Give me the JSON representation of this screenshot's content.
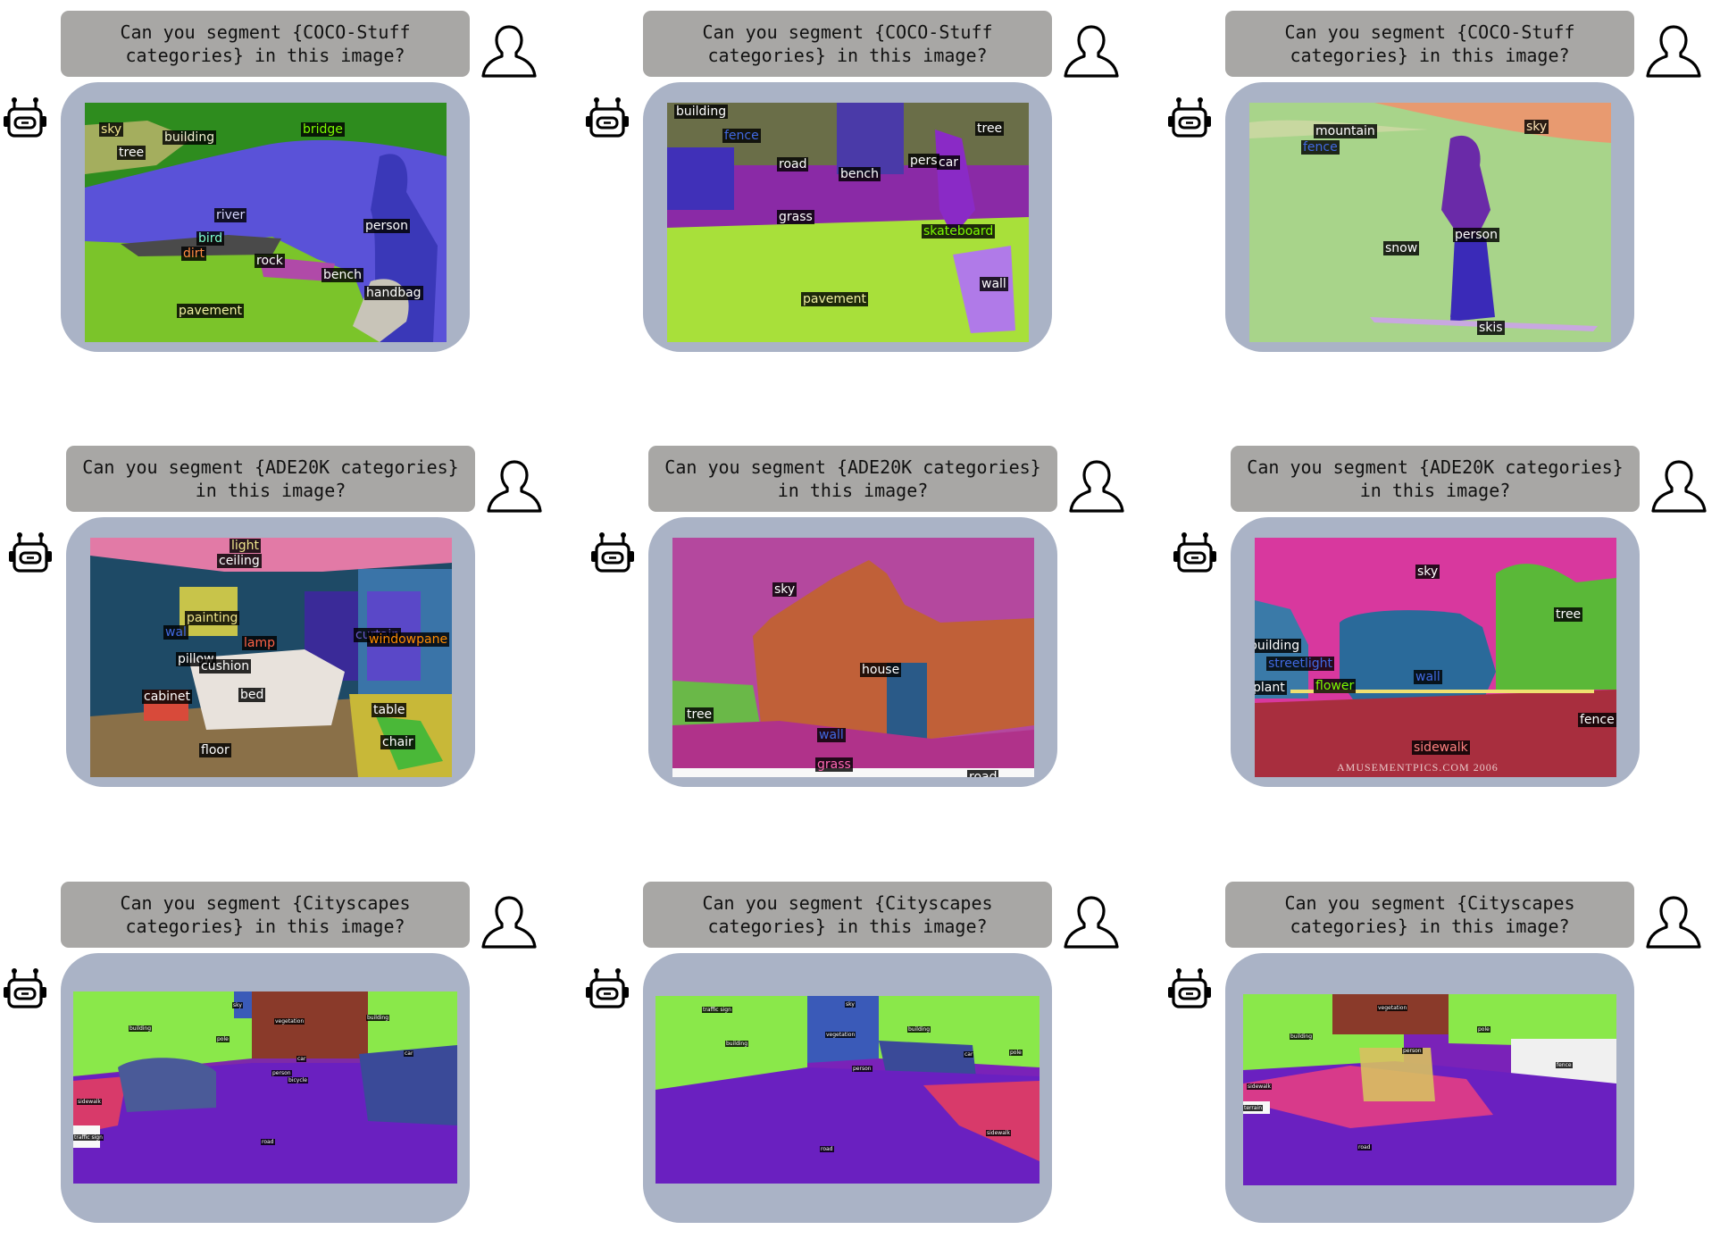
{
  "cells": [
    {
      "prompt": "Can you segment {COCO-Stuff\ncategories} in this image?",
      "labels": [
        {
          "t": "sky",
          "c": "#f0e68c"
        },
        {
          "t": "building",
          "c": "#f0f0d0"
        },
        {
          "t": "bridge",
          "c": "#7cfc00"
        },
        {
          "t": "tree",
          "c": "#ffffff"
        },
        {
          "t": "river",
          "c": "#d8d8ff"
        },
        {
          "t": "person",
          "c": "#ffffff"
        },
        {
          "t": "bird",
          "c": "#7fffd4"
        },
        {
          "t": "dirt",
          "c": "#ff8c42"
        },
        {
          "t": "rock",
          "c": "#ffffff"
        },
        {
          "t": "bench",
          "c": "#ffffff"
        },
        {
          "t": "handbag",
          "c": "#ffffff"
        },
        {
          "t": "pavement",
          "c": "#f0f0a0"
        }
      ]
    },
    {
      "prompt": "Can you segment {COCO-Stuff\ncategories} in this image?",
      "labels": [
        {
          "t": "building",
          "c": "#ffffff"
        },
        {
          "t": "fence",
          "c": "#4169e1"
        },
        {
          "t": "road",
          "c": "#ffffff"
        },
        {
          "t": "bench",
          "c": "#ffffff"
        },
        {
          "t": "pers",
          "c": "#ffffff"
        },
        {
          "t": "car",
          "c": "#ffffff"
        },
        {
          "t": "tree",
          "c": "#ffffff"
        },
        {
          "t": "grass",
          "c": "#ffffff"
        },
        {
          "t": "skateboard",
          "c": "#7cfc00"
        },
        {
          "t": "wall",
          "c": "#ffffff"
        },
        {
          "t": "pavement",
          "c": "#f0f0a0"
        }
      ]
    },
    {
      "prompt": "Can you segment {COCO-Stuff\ncategories} in this image?",
      "labels": [
        {
          "t": "mountain",
          "c": "#ffffff"
        },
        {
          "t": "fence",
          "c": "#4169e1"
        },
        {
          "t": "sky",
          "c": "#ffe4b5"
        },
        {
          "t": "person",
          "c": "#ffffff"
        },
        {
          "t": "snow",
          "c": "#ffffff"
        },
        {
          "t": "skis",
          "c": "#ffffff"
        }
      ]
    },
    {
      "prompt": "Can you segment {ADE20K categories}\nin this image?",
      "labels": [
        {
          "t": "light",
          "c": "#f0e68c"
        },
        {
          "t": "ceiling",
          "c": "#ffffff"
        },
        {
          "t": "painting",
          "c": "#f0e68c"
        },
        {
          "t": "wal",
          "c": "#4169e1"
        },
        {
          "t": "lamp",
          "c": "#ff6347"
        },
        {
          "t": "curtain",
          "c": "#6a5acd"
        },
        {
          "t": "windowpane",
          "c": "#ff8c00"
        },
        {
          "t": "pillow",
          "c": "#ffffff"
        },
        {
          "t": "cushion",
          "c": "#ffffff"
        },
        {
          "t": "cabinet",
          "c": "#ffffff"
        },
        {
          "t": "bed",
          "c": "#ffffff"
        },
        {
          "t": "table",
          "c": "#ffffff"
        },
        {
          "t": "chair",
          "c": "#ffffff"
        },
        {
          "t": "floor",
          "c": "#ffffff"
        }
      ]
    },
    {
      "prompt": "Can you segment {ADE20K categories}\nin this image?",
      "labels": [
        {
          "t": "sky",
          "c": "#ffffff"
        },
        {
          "t": "house",
          "c": "#ffffff"
        },
        {
          "t": "tree",
          "c": "#ffffff"
        },
        {
          "t": "wall",
          "c": "#4169e1"
        },
        {
          "t": "grass",
          "c": "#ff69b4"
        },
        {
          "t": "road",
          "c": "#ffffff"
        }
      ]
    },
    {
      "prompt": "Can you segment {ADE20K categories}\nin this image?",
      "labels": [
        {
          "t": "sky",
          "c": "#ffffff"
        },
        {
          "t": "tree",
          "c": "#ffffff"
        },
        {
          "t": "building",
          "c": "#ffffff"
        },
        {
          "t": "streetlight",
          "c": "#4169e1"
        },
        {
          "t": "wall",
          "c": "#4169e1"
        },
        {
          "t": "plant",
          "c": "#ffffff"
        },
        {
          "t": "flower",
          "c": "#7cfc00"
        },
        {
          "t": "fence",
          "c": "#ffffff"
        },
        {
          "t": "sidewalk",
          "c": "#ff8080"
        }
      ],
      "watermark": "AMUSEMENTPICS.COM 2006"
    },
    {
      "prompt": "Can you segment {Cityscapes\ncategories} in this image?",
      "labels": [
        {
          "t": "building",
          "c": "#ffffff"
        },
        {
          "t": "sky",
          "c": "#ffffff"
        },
        {
          "t": "vegetation",
          "c": "#ffffff"
        },
        {
          "t": "building",
          "c": "#ffffff"
        },
        {
          "t": "pole",
          "c": "#ffffff"
        },
        {
          "t": "car",
          "c": "#ffffff"
        },
        {
          "t": "person",
          "c": "#ffffff"
        },
        {
          "t": "bicycle",
          "c": "#ffffff"
        },
        {
          "t": "sidewalk",
          "c": "#ffffff"
        },
        {
          "t": "traffic sign",
          "c": "#ffffff"
        },
        {
          "t": "road",
          "c": "#ffffff"
        },
        {
          "t": "car",
          "c": "#ffffff"
        }
      ]
    },
    {
      "prompt": "Can you segment {Cityscapes\ncategories} in this image?",
      "labels": [
        {
          "t": "traffic sign",
          "c": "#ffffff"
        },
        {
          "t": "sky",
          "c": "#ffffff"
        },
        {
          "t": "building",
          "c": "#ffffff"
        },
        {
          "t": "vegetation",
          "c": "#ffffff"
        },
        {
          "t": "building",
          "c": "#ffffff"
        },
        {
          "t": "pole",
          "c": "#ffffff"
        },
        {
          "t": "car",
          "c": "#ffffff"
        },
        {
          "t": "person",
          "c": "#ffffff"
        },
        {
          "t": "sidewalk",
          "c": "#ffffff"
        },
        {
          "t": "road",
          "c": "#ffffff"
        }
      ]
    },
    {
      "prompt": "Can you segment {Cityscapes\ncategories} in this image?",
      "labels": [
        {
          "t": "vegetation",
          "c": "#ffffff"
        },
        {
          "t": "building",
          "c": "#ffffff"
        },
        {
          "t": "person",
          "c": "#ffffff"
        },
        {
          "t": "pole",
          "c": "#ffffff"
        },
        {
          "t": "fence",
          "c": "#ffffff"
        },
        {
          "t": "sidewalk",
          "c": "#ffffff"
        },
        {
          "t": "terrain",
          "c": "#ffffff"
        },
        {
          "t": "road",
          "c": "#ffffff"
        }
      ]
    }
  ]
}
